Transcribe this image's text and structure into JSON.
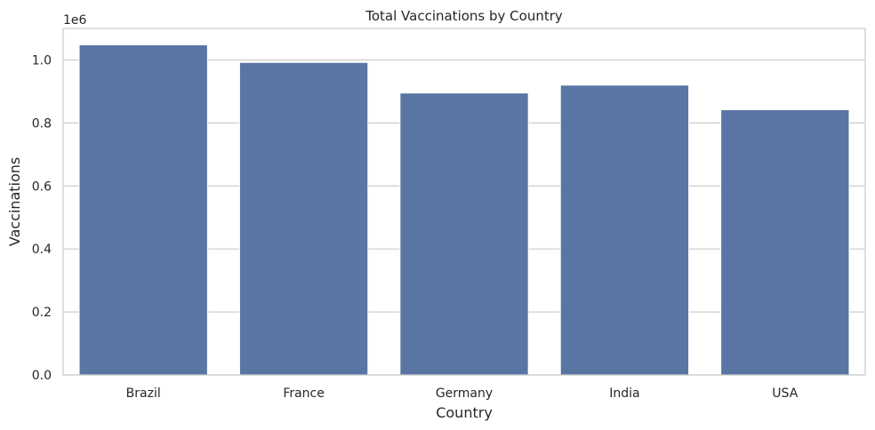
{
  "chart_data": {
    "type": "bar",
    "title": "Total Vaccinations by Country",
    "xlabel": "Country",
    "ylabel": "Vaccinations",
    "y_offset_label": "1e6",
    "categories": [
      "Brazil",
      "France",
      "Germany",
      "India",
      "USA"
    ],
    "values": [
      1048000,
      992000,
      895000,
      920000,
      842000
    ],
    "ylim": [
      0,
      1100000
    ],
    "yticks": [
      0,
      200000,
      400000,
      600000,
      800000,
      1000000
    ],
    "ytick_labels": [
      "0.0",
      "0.2",
      "0.4",
      "0.6",
      "0.8",
      "1.0"
    ],
    "grid": true,
    "bar_color": "#5975a4",
    "grid_color": "#cccccc",
    "frame_color": "#cccccc"
  }
}
